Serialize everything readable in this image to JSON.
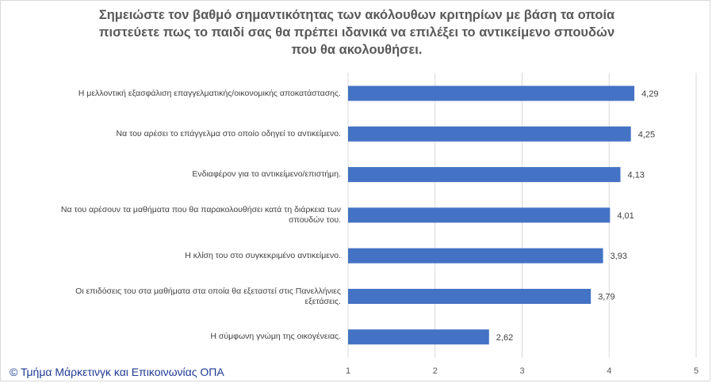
{
  "chart_data": {
    "type": "bar",
    "orientation": "horizontal",
    "title_lines": [
      "Σημειώστε τον βαθμό σημαντικότητας των ακόλουθων  κριτηρίων με βάση τα οποία",
      "πιστεύετε πως το παιδί σας θα πρέπει ιδανικά να επιλέξει το αντικείμενο σπουδών",
      "που θα ακολουθήσει."
    ],
    "categories": [
      [
        "Η μελλοντική εξασφάλιση επαγγελματικής/οικονομικής αποκατάστασης."
      ],
      [
        "Να του αρέσει το επάγγελμα στο οποίο οδηγεί το αντικείμενο."
      ],
      [
        "Ενδιαφέρον για το αντικείμενο/επιστήμη."
      ],
      [
        "Να του αρέσουν τα μαθήματα που θα παρακολουθήσει κατά τη διάρκεια των",
        "σπουδών του."
      ],
      [
        "Η κλίση του στο συγκεκριμένο αντικείμενο."
      ],
      [
        "Οι επιδόσεις του στα μαθήματα στα οποία θα εξεταστεί στις Πανελλήνιες",
        "εξετάσεις."
      ],
      [
        "Η σύμφωνη γνώμη της οικογένειας."
      ]
    ],
    "values": [
      4.29,
      4.25,
      4.13,
      4.01,
      3.93,
      3.79,
      2.62
    ],
    "value_labels": [
      "4,29",
      "4,25",
      "4,13",
      "4,01",
      "3,93",
      "3,79",
      "2,62"
    ],
    "xlim": [
      1,
      5
    ],
    "x_ticks": [
      "1",
      "2",
      "3",
      "4",
      "5"
    ],
    "grid": true,
    "bar_color": "#4472c4",
    "grid_color": "#d9d9d9"
  },
  "footer": "© Τμήμα Μάρκετινγκ και Επικοινωνίας ΟΠΑ"
}
